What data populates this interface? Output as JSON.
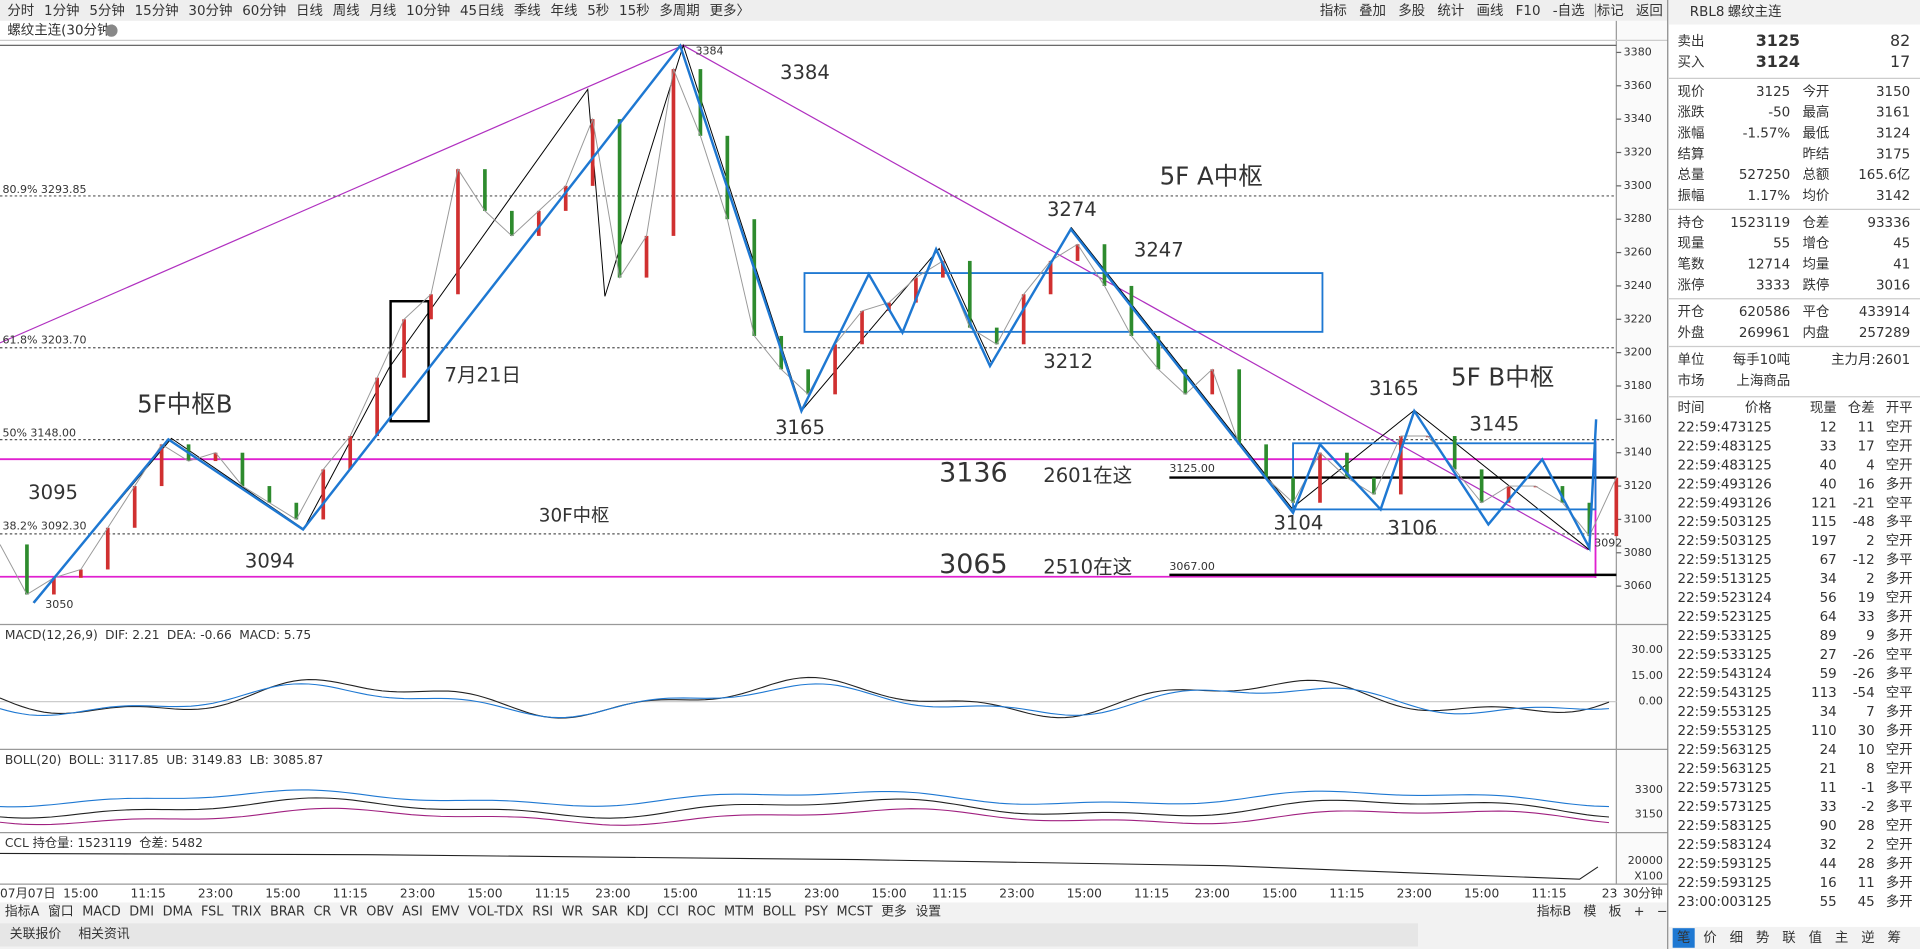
{
  "toolbar": {
    "periods": [
      "分时",
      "1分钟",
      "5分钟",
      "15分钟",
      "30分钟",
      "60分钟",
      "日线",
      "周线",
      "月线",
      "10分钟",
      "45日线",
      "季线",
      "年线",
      "5秒",
      "15秒",
      "多周期",
      "更多〉"
    ],
    "active_period_color": "#e02020",
    "tools": [
      "指标",
      "叠加",
      "多股",
      "统计",
      "画线",
      "F10",
      "-自选",
      "标记",
      "返回"
    ]
  },
  "subtitle": "螺纹主连(30分钟)",
  "main_chart": {
    "ylim": [
      3037,
      3385
    ],
    "xlim": [
      0,
      240
    ],
    "yticks": [
      3060,
      3080,
      3100,
      3120,
      3140,
      3160,
      3180,
      3200,
      3220,
      3240,
      3260,
      3280,
      3300,
      3320,
      3340,
      3360,
      3380
    ],
    "x": [
      0,
      4,
      8,
      12,
      16,
      20,
      24,
      28,
      32,
      36,
      40,
      44,
      48,
      52,
      56,
      60,
      64,
      68,
      72,
      76,
      80,
      84,
      88,
      92,
      96,
      100,
      104,
      108,
      112,
      116,
      120,
      124,
      128,
      132,
      136,
      140,
      144,
      148,
      152,
      156,
      160,
      164,
      168,
      172,
      176,
      180,
      184,
      188,
      192,
      196,
      200,
      204,
      208,
      212,
      216,
      220,
      224,
      228,
      232,
      236,
      240
    ],
    "close": [
      3085,
      3055,
      3065,
      3070,
      3095,
      3120,
      3145,
      3135,
      3140,
      3120,
      3110,
      3100,
      3130,
      3150,
      3185,
      3220,
      3235,
      3310,
      3285,
      3270,
      3285,
      3300,
      3340,
      3245,
      3270,
      3370,
      3330,
      3280,
      3210,
      3190,
      3175,
      3205,
      3225,
      3230,
      3245,
      3255,
      3215,
      3205,
      3235,
      3255,
      3265,
      3240,
      3210,
      3190,
      3175,
      3190,
      3145,
      3125,
      3110,
      3140,
      3125,
      3115,
      3150,
      3150,
      3130,
      3110,
      3120,
      3120,
      3110,
      3090,
      3125
    ],
    "up_color": "#d03030",
    "down_color": "#2e8b2e",
    "zigzag": {
      "color": "#1e78d2",
      "x": [
        5,
        25,
        45,
        101,
        119,
        129,
        134,
        139,
        147,
        159,
        192,
        196,
        205,
        210,
        221,
        229,
        236,
        237
      ],
      "values": [
        3050,
        3148,
        3094,
        3384,
        3165,
        3247,
        3212,
        3262,
        3192,
        3274,
        3104,
        3145,
        3106,
        3165,
        3097,
        3136,
        3083,
        3160
      ]
    },
    "annotations": [
      "3384",
      "3384",
      "3274",
      "5F A中枢",
      "3247",
      "3212",
      "3165",
      "3165",
      "5F B中枢",
      "3145",
      "3136",
      "2601在这",
      "3125.00",
      "3104",
      "3106",
      "3065",
      "2510在这",
      "3067.00",
      "30F中枢",
      "5F中枢B",
      "3095",
      "3094",
      "7月21日",
      "3050",
      "3092",
      "80.9% 3293.85",
      "61.8% 3203.70",
      "50% 3148.00",
      "38.2% 3092.30"
    ]
  },
  "macd": {
    "header": [
      "MACD(12,26,9)",
      "DIF: 2.21",
      "DEA: -0.66",
      "MACD: 5.75"
    ],
    "header_colors": [
      "#333333",
      "#333333",
      "#1e78d2",
      "#a02080"
    ],
    "yticks": [
      "30.00",
      "15.00",
      "0.00"
    ]
  },
  "boll": {
    "header": [
      "BOLL(20)",
      "BOLL: 3117.85",
      "UB: 3149.83",
      "LB: 3085.87"
    ],
    "header_colors": [
      "#333333",
      "#333333",
      "#1e78d2",
      "#a02080"
    ],
    "yticks": [
      "3300",
      "3150"
    ]
  },
  "ccl": {
    "header": [
      "CCL 持仓量: 1523119",
      "仓差: 5482"
    ],
    "header_colors": [
      "#333333",
      "#1e78d2"
    ],
    "yticks": [
      "20000",
      "X100"
    ]
  },
  "time_axis": {
    "x": [
      0,
      12,
      22,
      32,
      42,
      52,
      62,
      72,
      82,
      91,
      101,
      112,
      122,
      132,
      141,
      151,
      161,
      171,
      180,
      190,
      200,
      210,
      220,
      230,
      239
    ],
    "labels": [
      "07月07日",
      "15:00",
      "11:15",
      "23:00",
      "15:00",
      "11:15",
      "23:00",
      "15:00",
      "11:15",
      "23:00",
      "15:00",
      "11:15",
      "23:00",
      "15:00",
      "11:15",
      "23:00",
      "15:00",
      "11:15",
      "23:00",
      "15:00",
      "11:15",
      "23:00",
      "15:00",
      "11:15",
      "23"
    ]
  },
  "indicator_tabs": [
    "指标A",
    "窗口",
    "MACD",
    "DMI",
    "DMA",
    "FSL",
    "TRIX",
    "BRAR",
    "CR",
    "VR",
    "OBV",
    "ASI",
    "EMV",
    "VOL-TDX",
    "RSI",
    "WR",
    "SAR",
    "KDJ",
    "CCI",
    "ROC",
    "MTM",
    "BOLL",
    "PSY",
    "MCST",
    "更多",
    "设置"
  ],
  "indicator_tabs_right": [
    "指标B",
    "模",
    "板",
    "+",
    "−"
  ],
  "status_tabs": [
    "关联报价",
    "相关资讯"
  ],
  "quote_panel": {
    "symbol": "RBL8",
    "name": "螺纹主连",
    "book": [
      [
        "卖出",
        "3125",
        "82"
      ],
      [
        "买入",
        "3124",
        "17"
      ]
    ],
    "groups": [
      [
        [
          "现价",
          "3125",
          "#109010",
          "今开",
          "3150",
          "#109010"
        ],
        [
          "涨跌",
          "-50",
          "#109010",
          "最高",
          "3161",
          "#d02020"
        ],
        [
          "涨幅",
          "-1.57%",
          "#109010",
          "最低",
          "3124",
          "#109010"
        ],
        [
          "结算",
          "",
          "#333333",
          "昨结",
          "3175",
          "#333333"
        ],
        [
          "总量",
          "527250",
          "#333333",
          "总额",
          "165.6亿",
          "#333333"
        ],
        [
          "振幅",
          "1.17%",
          "#333333",
          "均价",
          "3142",
          "#109010"
        ]
      ],
      [
        [
          "持仓",
          "1523119",
          "#333333",
          "仓差",
          "93336",
          "#d02020"
        ],
        [
          "现量",
          "55",
          "#333333",
          "增仓",
          "45",
          "#333333"
        ],
        [
          "笔数",
          "12714",
          "#d02020",
          "均量",
          "41",
          "#d02020"
        ],
        [
          "涨停",
          "3333",
          "#d02020",
          "跌停",
          "3016",
          "#109010"
        ]
      ],
      [
        [
          "开仓",
          "620586",
          "#333333",
          "平仓",
          "433914",
          "#333333"
        ],
        [
          "外盘",
          "269961",
          "#d02020",
          "内盘",
          "257289",
          "#109010"
        ]
      ],
      [
        [
          "单位",
          "每手10吨",
          "#333333",
          "主力月:2601",
          "",
          "#333333"
        ],
        [
          "市场",
          "上海商品",
          "#333333",
          "",
          "",
          "#333333"
        ]
      ]
    ],
    "tick_header": [
      "时间",
      "价格",
      "现量",
      "仓差",
      "开平"
    ],
    "ticks": [
      [
        "22:59:47",
        "3125",
        "12",
        "11",
        "空开"
      ],
      [
        "22:59:48",
        "3125",
        "33",
        "17",
        "空开"
      ],
      [
        "22:59:48",
        "3125",
        "40",
        "4",
        "空开"
      ],
      [
        "22:59:49",
        "3126",
        "40",
        "16",
        "多开"
      ],
      [
        "22:59:49",
        "3126",
        "121",
        "-21",
        "空平"
      ],
      [
        "22:59:50",
        "3125",
        "115",
        "-48",
        "多平"
      ],
      [
        "22:59:50",
        "3125",
        "197",
        "2",
        "空开"
      ],
      [
        "22:59:51",
        "3125",
        "67",
        "-12",
        "多平"
      ],
      [
        "22:59:51",
        "3125",
        "34",
        "2",
        "多开"
      ],
      [
        "22:59:52",
        "3124",
        "56",
        "19",
        "空开"
      ],
      [
        "22:59:52",
        "3125",
        "64",
        "33",
        "多开"
      ],
      [
        "22:59:53",
        "3125",
        "89",
        "9",
        "多开"
      ],
      [
        "22:59:53",
        "3125",
        "27",
        "-26",
        "空平"
      ],
      [
        "22:59:54",
        "3124",
        "59",
        "-26",
        "多平"
      ],
      [
        "22:59:54",
        "3125",
        "113",
        "-54",
        "空平"
      ],
      [
        "22:59:55",
        "3125",
        "34",
        "7",
        "多开"
      ],
      [
        "22:59:55",
        "3125",
        "110",
        "30",
        "多开"
      ],
      [
        "22:59:56",
        "3125",
        "24",
        "10",
        "空开"
      ],
      [
        "22:59:56",
        "3125",
        "21",
        "8",
        "空开"
      ],
      [
        "22:59:57",
        "3125",
        "11",
        "-1",
        "多平"
      ],
      [
        "22:59:57",
        "3125",
        "33",
        "-2",
        "多平"
      ],
      [
        "22:59:58",
        "3125",
        "90",
        "28",
        "空开"
      ],
      [
        "22:59:58",
        "3124",
        "32",
        "2",
        "空开"
      ],
      [
        "22:59:59",
        "3125",
        "44",
        "28",
        "多开"
      ],
      [
        "22:59:59",
        "3125",
        "16",
        "11",
        "多开"
      ],
      [
        "23:00:00",
        "3125",
        "55",
        "45",
        "多开"
      ]
    ],
    "tick_colors": [
      "#109010",
      "#109010",
      "#109010",
      "#d02020",
      "#d02020",
      "#109010",
      "#109010",
      "#109010",
      "#d02020",
      "#109010",
      "#d02020",
      "#d02020",
      "#d02020",
      "#109010",
      "#d02020",
      "#d02020",
      "#d02020",
      "#109010",
      "#109010",
      "#109010",
      "#109010",
      "#109010",
      "#109010",
      "#d02020",
      "#d02020",
      "#d02020"
    ],
    "tick_price_color": "#109010",
    "bottom_tabs": [
      "笔",
      "价",
      "细",
      "势",
      "联",
      "值",
      "主",
      "逆",
      "筹"
    ]
  }
}
